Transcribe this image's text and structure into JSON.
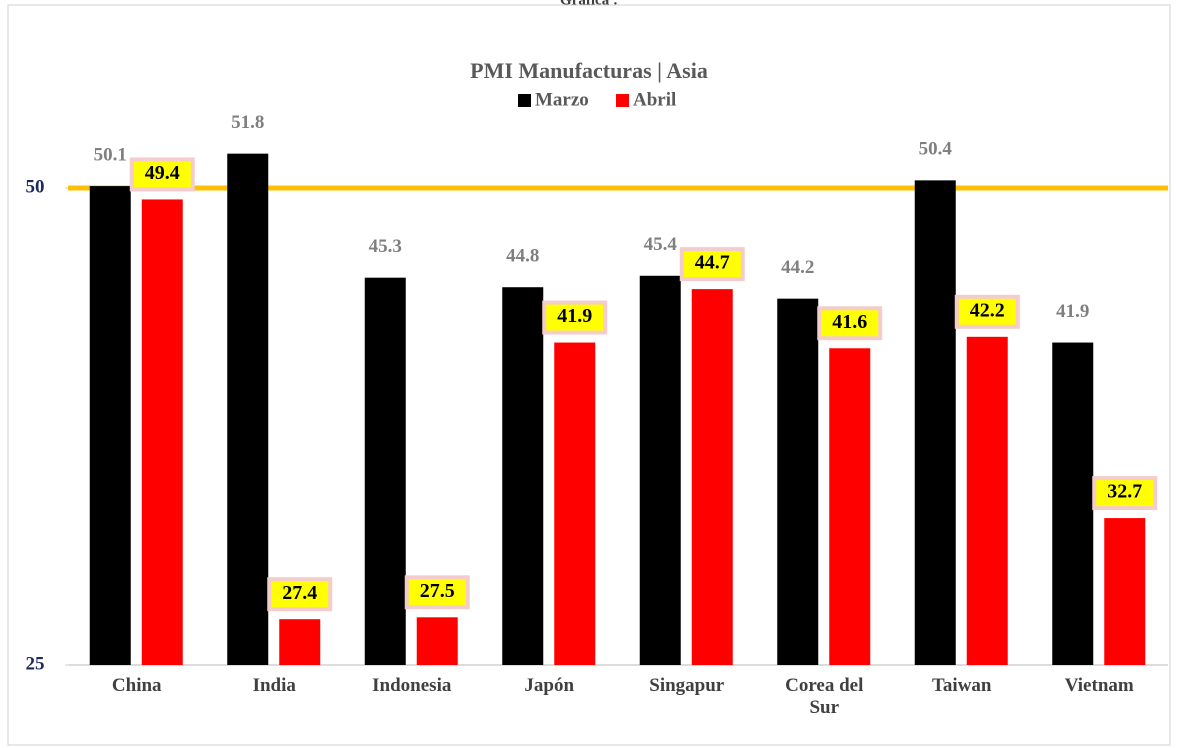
{
  "chart_data": {
    "type": "bar",
    "caption": "Gráfica :",
    "title": "PMI Manufacturas | Asia",
    "categories": [
      "China",
      "India",
      "Indonesia",
      "Japón",
      "Singapur",
      "Corea del Sur",
      "Taiwan",
      "Vietnam"
    ],
    "series": [
      {
        "name": "Marzo",
        "color": "#000000",
        "values": [
          50.1,
          51.8,
          45.3,
          44.8,
          45.4,
          44.2,
          50.4,
          41.9
        ]
      },
      {
        "name": "Abril",
        "color": "#ff0000",
        "values": [
          49.4,
          27.4,
          27.5,
          41.9,
          44.7,
          41.6,
          42.2,
          32.7
        ]
      }
    ],
    "ylim": [
      25,
      55
    ],
    "yticks": [
      25,
      50
    ],
    "reference_line": 50,
    "reference_color": "#ffc000",
    "legend": "top"
  }
}
